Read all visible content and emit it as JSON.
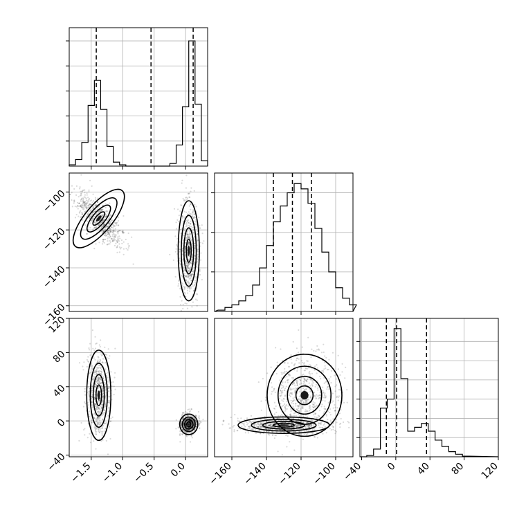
{
  "chart_data": {
    "type": "corner",
    "parameters": 3,
    "panels": [
      {
        "id": "hist-p1",
        "type": "histogram",
        "xlim": [
          -1.85,
          0.35
        ],
        "ylim": [
          0,
          1.05
        ],
        "bins": [
          [
            -1.85,
            -1.75,
            0.01
          ],
          [
            -1.75,
            -1.65,
            0.05
          ],
          [
            -1.65,
            -1.55,
            0.18
          ],
          [
            -1.55,
            -1.45,
            0.46
          ],
          [
            -1.45,
            -1.35,
            0.65
          ],
          [
            -1.35,
            -1.25,
            0.43
          ],
          [
            -1.25,
            -1.15,
            0.15
          ],
          [
            -1.15,
            -1.05,
            0.03
          ],
          [
            -1.05,
            -0.95,
            0.01
          ],
          [
            -0.95,
            -0.25,
            0.0
          ],
          [
            -0.25,
            -0.15,
            0.02
          ],
          [
            -0.15,
            -0.05,
            0.16
          ],
          [
            -0.05,
            0.05,
            0.45
          ],
          [
            0.05,
            0.15,
            0.95
          ],
          [
            0.15,
            0.25,
            0.47
          ],
          [
            0.25,
            0.35,
            0.04
          ]
        ],
        "quantiles": [
          -1.42,
          -0.55,
          0.12
        ],
        "x_ticks": [
          -1.5,
          -1.0,
          -0.5,
          0.0
        ],
        "y_ticks": [
          0.19,
          0.38,
          0.57,
          0.76,
          0.95
        ]
      },
      {
        "id": "hist-p2",
        "type": "histogram",
        "xlim": [
          -170,
          -90
        ],
        "ylim": [
          0,
          1.05
        ],
        "bins": [
          [
            -168,
            -164,
            0.01
          ],
          [
            -164,
            -160,
            0.03
          ],
          [
            -160,
            -156,
            0.05
          ],
          [
            -156,
            -152,
            0.08
          ],
          [
            -152,
            -148,
            0.12
          ],
          [
            -148,
            -144,
            0.2
          ],
          [
            -144,
            -140,
            0.33
          ],
          [
            -140,
            -136,
            0.5
          ],
          [
            -136,
            -132,
            0.68
          ],
          [
            -132,
            -128,
            0.8
          ],
          [
            -128,
            -124,
            0.9
          ],
          [
            -124,
            -120,
            0.97
          ],
          [
            -120,
            -116,
            0.93
          ],
          [
            -116,
            -112,
            0.82
          ],
          [
            -112,
            -108,
            0.63
          ],
          [
            -108,
            -104,
            0.45
          ],
          [
            -104,
            -100,
            0.3
          ],
          [
            -100,
            -96,
            0.18
          ],
          [
            -96,
            -92,
            0.1
          ],
          [
            -92,
            -88,
            0.05
          ]
        ],
        "quantiles": [
          -136,
          -125,
          -114
        ],
        "x_ticks": [
          -160,
          -140,
          -120,
          -100
        ],
        "y_ticks": [
          0.3,
          0.6,
          0.9
        ]
      },
      {
        "id": "hist-p3",
        "type": "histogram",
        "xlim": [
          -42,
          120
        ],
        "ylim": [
          0,
          1.08
        ],
        "bins": [
          [
            -42,
            -34,
            0.0
          ],
          [
            -34,
            -26,
            0.01
          ],
          [
            -26,
            -18,
            0.06
          ],
          [
            -18,
            -10,
            0.38
          ],
          [
            -10,
            -2,
            0.45
          ],
          [
            -2,
            6,
            1.0
          ],
          [
            6,
            14,
            0.61
          ],
          [
            14,
            22,
            0.2
          ],
          [
            22,
            30,
            0.23
          ],
          [
            30,
            38,
            0.26
          ],
          [
            38,
            46,
            0.2
          ],
          [
            46,
            54,
            0.13
          ],
          [
            54,
            62,
            0.08
          ],
          [
            62,
            70,
            0.04
          ],
          [
            70,
            78,
            0.02
          ],
          [
            78,
            86,
            0.005
          ]
        ],
        "quantiles": [
          -11,
          1,
          36
        ],
        "x_ticks": [
          -40,
          0,
          40,
          80,
          120
        ],
        "x_tick_labels": [
          "−40",
          "0",
          "40",
          "80",
          "120"
        ],
        "y_ticks": [
          0.15,
          0.3,
          0.45,
          0.6,
          0.75,
          0.9
        ]
      },
      {
        "id": "scatter-p1-p2",
        "type": "2d-density",
        "xlim": [
          -1.85,
          0.35
        ],
        "ylim": [
          -163,
          -90
        ],
        "modes": [
          {
            "center": [
              -1.38,
              -114
            ],
            "sx": 0.09,
            "sy": 8,
            "rot_deg": -40,
            "n": 700
          },
          {
            "center": [
              0.05,
              -131
            ],
            "sx": 0.07,
            "sy": 11,
            "rot_deg": 0,
            "n": 700
          }
        ],
        "y_ticks": [
          -160,
          -140,
          -120,
          -100
        ],
        "y_tick_labels": [
          "−160",
          "−140",
          "−120",
          "−100"
        ]
      },
      {
        "id": "scatter-p1-p3",
        "type": "2d-density",
        "xlim": [
          -1.85,
          0.35
        ],
        "ylim": [
          -42,
          120
        ],
        "modes": [
          {
            "center": [
              -1.38,
              30
            ],
            "sx": 0.08,
            "sy": 22,
            "rot_deg": 0,
            "n": 700
          },
          {
            "center": [
              0.05,
              -4
            ],
            "sx": 0.06,
            "sy": 5,
            "rot_deg": 0,
            "n": 700
          }
        ],
        "x_ticks": [
          -1.5,
          -1.0,
          -0.5,
          0.0
        ],
        "x_tick_labels": [
          "−1.5",
          "−1.0",
          "−0.5",
          "0.0"
        ],
        "y_ticks": [
          -40,
          0,
          40,
          80,
          120
        ],
        "y_tick_labels": [
          "−40",
          "0",
          "40",
          "80",
          "120"
        ]
      },
      {
        "id": "scatter-p2-p3",
        "type": "2d-density",
        "xlim": [
          -170,
          -90
        ],
        "ylim": [
          -42,
          120
        ],
        "modes": [
          {
            "center": [
              -130,
              -5
            ],
            "sx": 11,
            "sy": 4,
            "rot_deg": 0,
            "n": 800
          },
          {
            "center": [
              -118,
              30
            ],
            "sx": 9,
            "sy": 20,
            "rot_deg": 0,
            "n": 700
          }
        ],
        "x_ticks": [
          -160,
          -140,
          -120,
          -100
        ],
        "x_tick_labels": [
          "−160",
          "−140",
          "−120",
          "−100"
        ]
      }
    ]
  }
}
